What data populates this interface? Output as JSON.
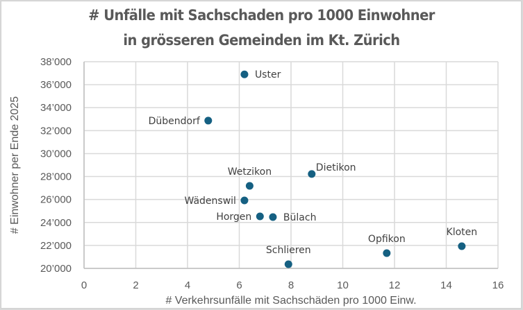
{
  "chart_data": {
    "type": "scatter",
    "title": [
      "# Unfälle mit Sachschaden  pro 1000 Einwohner",
      "in grösseren Gemeinden im Kt. Zürich"
    ],
    "xlabel": "# Verkehrsunfälle mit Sachschäden pro 1000 Einw.",
    "ylabel": "# Einwohner per Ende 2025",
    "xlim": [
      0,
      16
    ],
    "ylim": [
      20000,
      38000
    ],
    "xticks": [
      0,
      2,
      4,
      6,
      8,
      10,
      12,
      14,
      16
    ],
    "xtick_labels": [
      "0",
      "2",
      "4",
      "6",
      "8",
      "10",
      "12",
      "14",
      "16"
    ],
    "yticks": [
      20000,
      22000,
      24000,
      26000,
      28000,
      30000,
      32000,
      34000,
      36000,
      38000
    ],
    "ytick_labels": [
      "20’000",
      "22’000",
      "24’000",
      "26’000",
      "28’000",
      "30’000",
      "32’000",
      "34’000",
      "36’000",
      "38’000"
    ],
    "grid": true,
    "marker_color": "#156082",
    "points": [
      {
        "label": "Uster",
        "x": 6.2,
        "y": 36900,
        "label_pos": "right"
      },
      {
        "label": "Dübendorf",
        "x": 4.8,
        "y": 32870,
        "label_pos": "left"
      },
      {
        "label": "Dietikon",
        "x": 8.8,
        "y": 28220,
        "label_pos": "above-right"
      },
      {
        "label": "Wetzikon",
        "x": 6.4,
        "y": 27190,
        "label_pos": "above"
      },
      {
        "label": "Wädenswil",
        "x": 6.2,
        "y": 25920,
        "label_pos": "left"
      },
      {
        "label": "Horgen",
        "x": 6.8,
        "y": 24530,
        "label_pos": "left"
      },
      {
        "label": "Bülach",
        "x": 7.3,
        "y": 24470,
        "label_pos": "right"
      },
      {
        "label": "Schlieren",
        "x": 7.9,
        "y": 20360,
        "label_pos": "above"
      },
      {
        "label": "Opfikon",
        "x": 11.7,
        "y": 21330,
        "label_pos": "above"
      },
      {
        "label": "Kloten",
        "x": 14.6,
        "y": 21930,
        "label_pos": "above"
      }
    ]
  }
}
